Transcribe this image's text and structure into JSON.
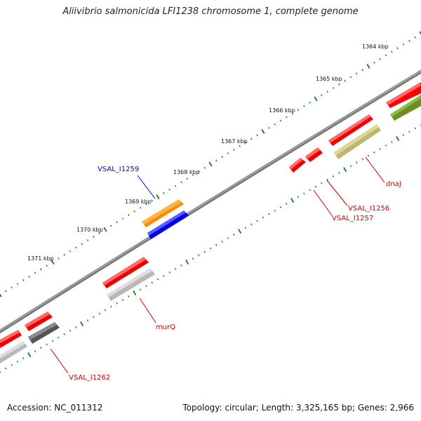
{
  "title": "Aliivibrio salmonicida LFI1238 chromosome 1, complete genome",
  "footer": {
    "accession": "Accession: NC_011312",
    "summary": "Topology: circular; Length: 3,325,165 bp; Genes: 2,966"
  },
  "ruler_labels": [
    "1364 kbp",
    "1365 kbp",
    "1366 kbp",
    "1367 kbp",
    "1368 kbp",
    "1369 kbp",
    "1370 kbp",
    "1371 kbp"
  ],
  "gene_labels": {
    "vsal_i1259": "VSAL_I1259",
    "dnaj": "dnaJ",
    "vsal_i1256": "VSAL_I1256",
    "vsal_i1257": "VSAL_I1257",
    "murq": "murQ",
    "vsal_i1262": "VSAL_I1262"
  },
  "colors": {
    "backbone": "#808080",
    "forward_gene": "#ff0000",
    "highlight_gene": "#0000ff",
    "orange_feature": "#ff8c00",
    "olive_feature": "#c8c27a",
    "dark_olive_feature": "#6b8e23",
    "gray_feature": "#c0c0c0",
    "dark_gray_feature": "#666666",
    "tick": "#1a7a1a",
    "label_red": "#cc0000",
    "label_blue": "#0000cc"
  }
}
